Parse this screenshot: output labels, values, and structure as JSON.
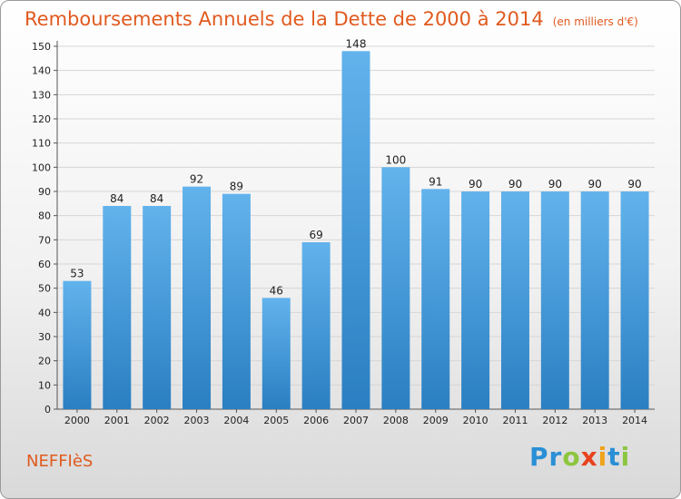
{
  "title": "Remboursements Annuels de la Dette de 2000 à 2014",
  "subtitle": "(en milliers d'€)",
  "commune": "NEFFIèS",
  "logo": {
    "text": "Proxiti",
    "letters": [
      {
        "ch": "P",
        "color": "#2a8fd6"
      },
      {
        "ch": "r",
        "color": "#2a8fd6"
      },
      {
        "ch": "o",
        "color": "#8cc63f"
      },
      {
        "ch": "x",
        "color": "#e8421f"
      },
      {
        "ch": "i",
        "color": "#f0a31b"
      },
      {
        "ch": "t",
        "color": "#2a8fd6"
      },
      {
        "ch": "i",
        "color": "#8cc63f"
      }
    ]
  },
  "colors": {
    "accent": "#e05a1f",
    "bar_top": "#62b3ec",
    "bar_bottom": "#2a7fc2",
    "grid": "#d6d6d6"
  },
  "chart_data": {
    "type": "bar",
    "categories": [
      "2000",
      "2001",
      "2002",
      "2003",
      "2004",
      "2005",
      "2006",
      "2007",
      "2008",
      "2009",
      "2010",
      "2011",
      "2012",
      "2013",
      "2014"
    ],
    "values": [
      53,
      84,
      84,
      92,
      89,
      46,
      69,
      148,
      100,
      91,
      90,
      90,
      90,
      90,
      90
    ],
    "ylim": [
      0,
      150
    ],
    "yticks": [
      0,
      10,
      20,
      30,
      40,
      50,
      60,
      70,
      80,
      90,
      100,
      110,
      120,
      130,
      140,
      150
    ],
    "grid": true,
    "legend": "none"
  }
}
